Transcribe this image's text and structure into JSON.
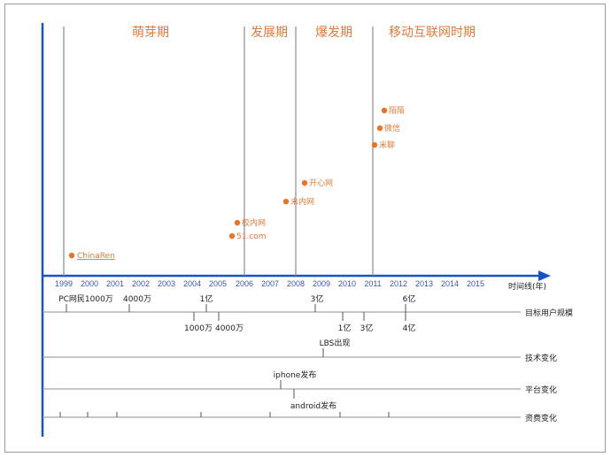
{
  "colors": {
    "main_axis": "#1a52c4",
    "phase_text": "#e07a3c",
    "event_dot": "#e8742a",
    "line_gray": "#8c8c8c",
    "year_text": "#3b55b5"
  },
  "phases": [
    {
      "label": "萌芽期"
    },
    {
      "label": "发展期"
    },
    {
      "label": "爆发期"
    },
    {
      "label": "移动互联网时期"
    }
  ],
  "years": [
    "1999",
    "2000",
    "2001",
    "2002",
    "2003",
    "2004",
    "2005",
    "2006",
    "2007",
    "2008",
    "2009",
    "2010",
    "2011",
    "2012",
    "2013",
    "2014",
    "2015"
  ],
  "axis_label": "时间线(年)",
  "events": [
    {
      "label": "ChinaRen",
      "year": 1999.3
    },
    {
      "label": "51.com",
      "year": 2005.8
    },
    {
      "label": "校内网",
      "year": 2006.0
    },
    {
      "label": "未内网",
      "year": 2007.6
    },
    {
      "label": "开心网",
      "year": 2008.3
    },
    {
      "label": "米聊",
      "year": 2011.1
    },
    {
      "label": "微信",
      "year": 2011.3
    },
    {
      "label": "陌陌",
      "year": 2011.4
    }
  ],
  "rows": [
    {
      "label": "目标用户规模",
      "marks": [
        {
          "text": "PC网民1000万",
          "side": "above"
        },
        {
          "text": "4000万",
          "side": "above"
        },
        {
          "text": "1亿",
          "side": "above"
        },
        {
          "text": "3亿",
          "side": "above"
        },
        {
          "text": "6亿",
          "side": "above"
        },
        {
          "text": "1000万",
          "side": "below"
        },
        {
          "text": "4000万",
          "side": "below"
        },
        {
          "text": "1亿",
          "side": "below"
        },
        {
          "text": "3亿",
          "side": "below"
        },
        {
          "text": "4亿",
          "side": "below"
        }
      ]
    },
    {
      "label": "技术变化",
      "marks": [
        {
          "text": "LBS出现",
          "side": "above"
        }
      ]
    },
    {
      "label": "平台变化",
      "marks": [
        {
          "text": "iphone发布",
          "side": "above"
        },
        {
          "text": "android发布",
          "side": "below"
        }
      ]
    },
    {
      "label": "资费变化",
      "marks": []
    }
  ]
}
